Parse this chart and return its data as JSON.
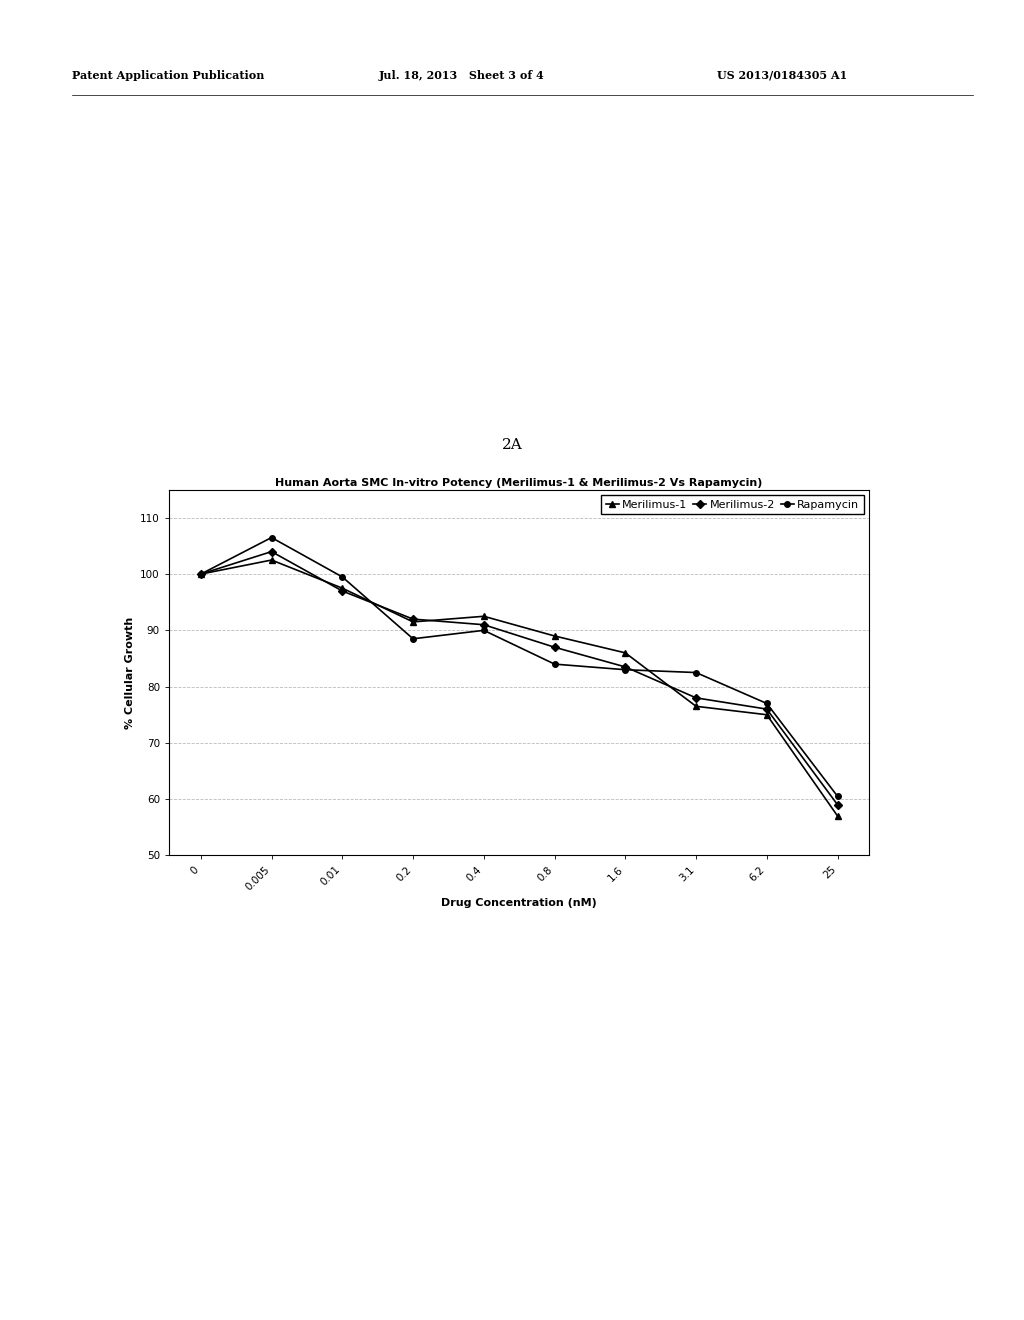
{
  "title": "Human Aorta SMC In-vitro Potency (Merilimus-1 & Merilimus-2 Vs Rapamycin)",
  "xlabel": "Drug Concentration (nM)",
  "ylabel": "% Cellular Growth",
  "x_labels": [
    "0",
    "0.005",
    "0.01",
    "0.2",
    "0.4",
    "0.8",
    "1.6",
    "3.1",
    "6.2",
    "25"
  ],
  "x_positions": [
    0,
    1,
    2,
    3,
    4,
    5,
    6,
    7,
    8,
    9
  ],
  "ylim": [
    50,
    115
  ],
  "yticks": [
    50,
    60,
    70,
    80,
    90,
    100,
    110
  ],
  "series_order": [
    "Merilimus-1",
    "Merilimus-2",
    "Rapamycin"
  ],
  "series": {
    "Merilimus-1": {
      "values": [
        100,
        102.5,
        97.5,
        91.5,
        92.5,
        89.0,
        86.0,
        76.5,
        75.0,
        57.0
      ],
      "marker": "^",
      "color": "#000000",
      "linewidth": 1.2,
      "markersize": 5
    },
    "Merilimus-2": {
      "values": [
        100,
        104.0,
        97.0,
        92.0,
        91.0,
        87.0,
        83.5,
        78.0,
        76.0,
        59.0
      ],
      "marker": "D",
      "color": "#000000",
      "linewidth": 1.2,
      "markersize": 4
    },
    "Rapamycin": {
      "values": [
        100,
        106.5,
        99.5,
        88.5,
        90.0,
        84.0,
        83.0,
        82.5,
        77.0,
        60.5
      ],
      "marker": "o",
      "color": "#000000",
      "linewidth": 1.2,
      "markersize": 4
    }
  },
  "header_left": "Patent Application Publication",
  "header_center": "Jul. 18, 2013   Sheet 3 of 4",
  "header_right": "US 2013/0184305 A1",
  "figure_label": "2A",
  "bg_color": "#ffffff",
  "grid_color": "#bbbbbb",
  "legend_fontsize": 8,
  "title_fontsize": 8,
  "axis_label_fontsize": 8,
  "tick_fontsize": 7.5,
  "header_fontsize": 8
}
